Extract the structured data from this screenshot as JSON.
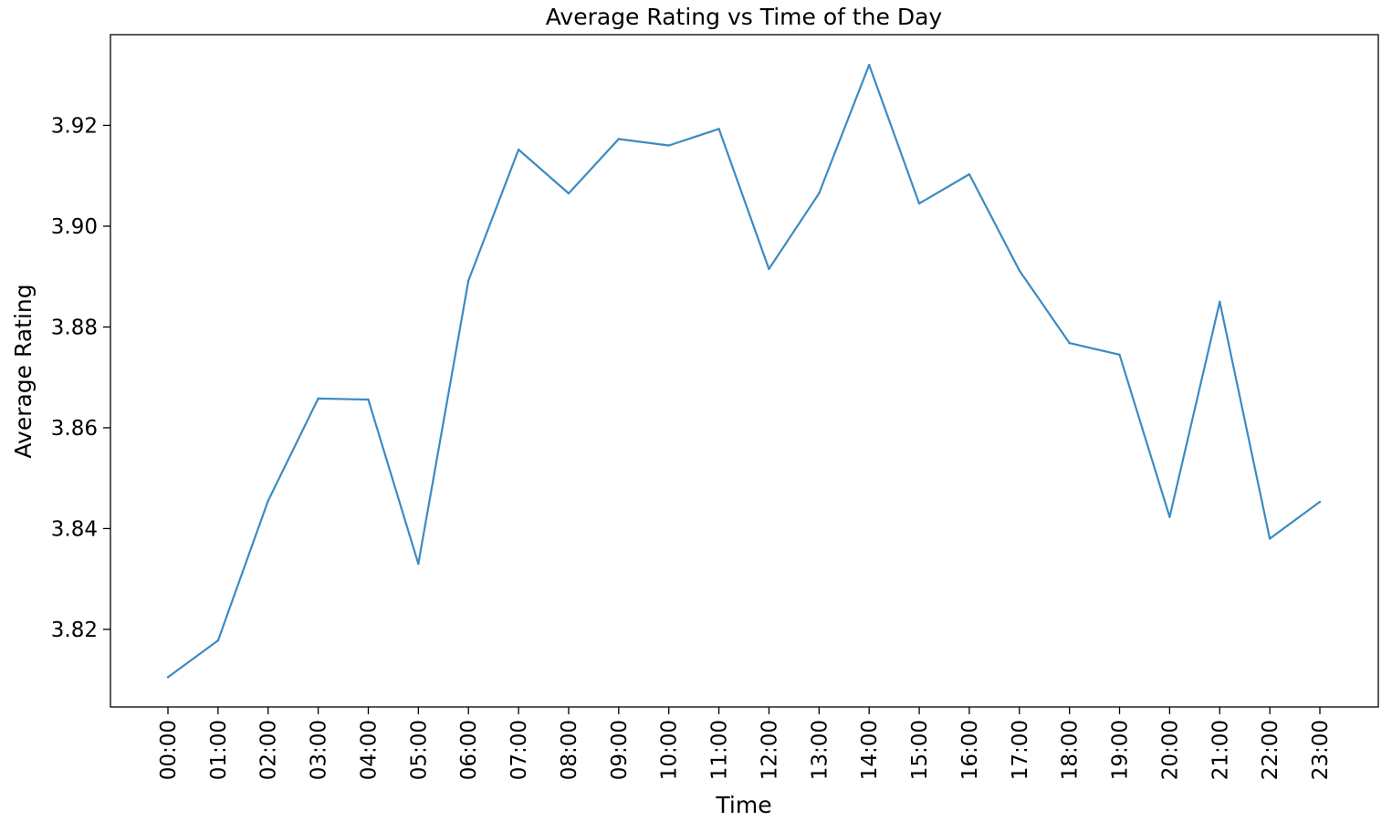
{
  "chart_data": {
    "type": "line",
    "title": "Average Rating vs Time of the Day",
    "xlabel": "Time",
    "ylabel": "Average Rating",
    "categories": [
      "00:00",
      "01:00",
      "02:00",
      "03:00",
      "04:00",
      "05:00",
      "06:00",
      "07:00",
      "08:00",
      "09:00",
      "10:00",
      "11:00",
      "12:00",
      "13:00",
      "14:00",
      "15:00",
      "16:00",
      "17:00",
      "18:00",
      "19:00",
      "20:00",
      "21:00",
      "22:00",
      "23:00"
    ],
    "series": [
      {
        "values": [
          3.8105,
          3.8178,
          3.8455,
          3.8658,
          3.8656,
          3.833,
          3.8892,
          3.9152,
          3.9065,
          3.9173,
          3.916,
          3.9193,
          3.8915,
          3.9065,
          3.932,
          3.9045,
          3.9103,
          3.8912,
          3.8768,
          3.8745,
          3.8423,
          3.885,
          3.838,
          3.8453
        ],
        "color": "#3b8bc2"
      }
    ],
    "ylim": [
      3.8046,
      3.938
    ],
    "yticks": [
      3.82,
      3.84,
      3.86,
      3.88,
      3.9,
      3.92
    ],
    "ytick_labels": [
      "3.82",
      "3.84",
      "3.86",
      "3.88",
      "3.90",
      "3.92"
    ],
    "grid": false,
    "legend": "none"
  }
}
